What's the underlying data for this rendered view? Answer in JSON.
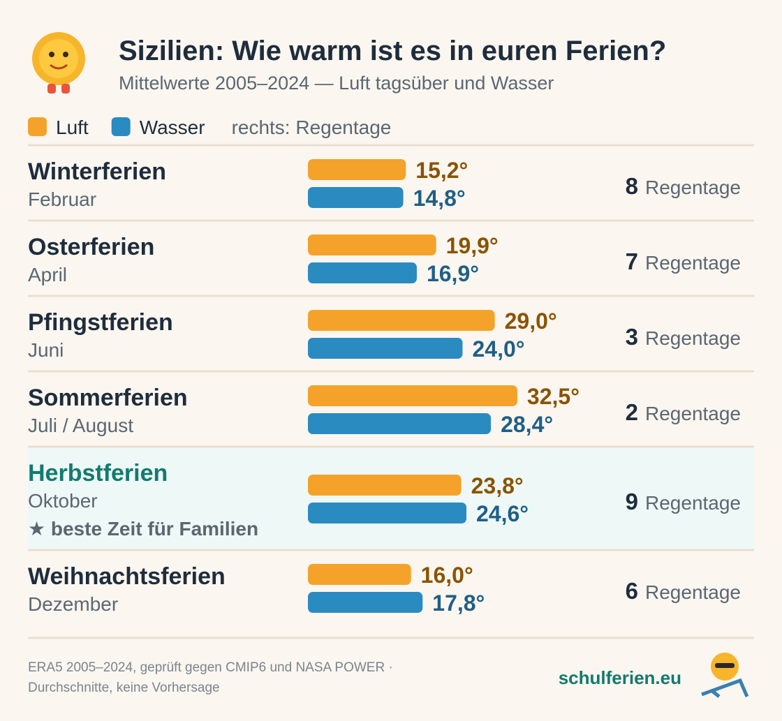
{
  "chart_data": {
    "type": "bar",
    "title": "Sizilien: Wie warm ist es in euren Ferien?",
    "subtitle": "Mittelwerte 2005–2024 — Luft tagsüber und Wasser",
    "legend_note": "rechts: Regentage",
    "categories": [
      "Winterferien",
      "Osterferien",
      "Pfingstferien",
      "Sommerferien",
      "Herbstferien",
      "Weihnachtsferien"
    ],
    "months": [
      "Februar",
      "April",
      "Juni",
      "Juli / August",
      "Oktober",
      "Dezember"
    ],
    "notes": [
      null,
      null,
      null,
      null,
      "★ beste Zeit für Familien",
      null
    ],
    "highlight": 4,
    "xlim": [
      0,
      35
    ],
    "series": [
      {
        "name": "Luft",
        "color": "#f4a22a",
        "label_color": "#8a5300",
        "values": [
          15.2,
          19.9,
          29.0,
          32.5,
          23.8,
          16.0
        ],
        "value_labels": [
          "15,2°",
          "19,9°",
          "29,0°",
          "32,5°",
          "23,8°",
          "16,0°"
        ]
      },
      {
        "name": "Wasser",
        "color": "#2a8bc0",
        "label_color": "#1f5f86",
        "values": [
          14.8,
          16.9,
          24.0,
          28.4,
          24.6,
          17.8
        ],
        "value_labels": [
          "14,8°",
          "16,9°",
          "24,0°",
          "28,4°",
          "24,6°",
          "17,8°"
        ]
      }
    ],
    "rain_days": {
      "label": "Regentage",
      "values": [
        8,
        7,
        3,
        2,
        9,
        6
      ]
    },
    "source": [
      "ERA5 2005–2024, geprüft gegen CMIP6 und NASA POWER ·",
      "Durchschnitte, keine Vorhersage"
    ],
    "brand": "schulferien.eu"
  }
}
